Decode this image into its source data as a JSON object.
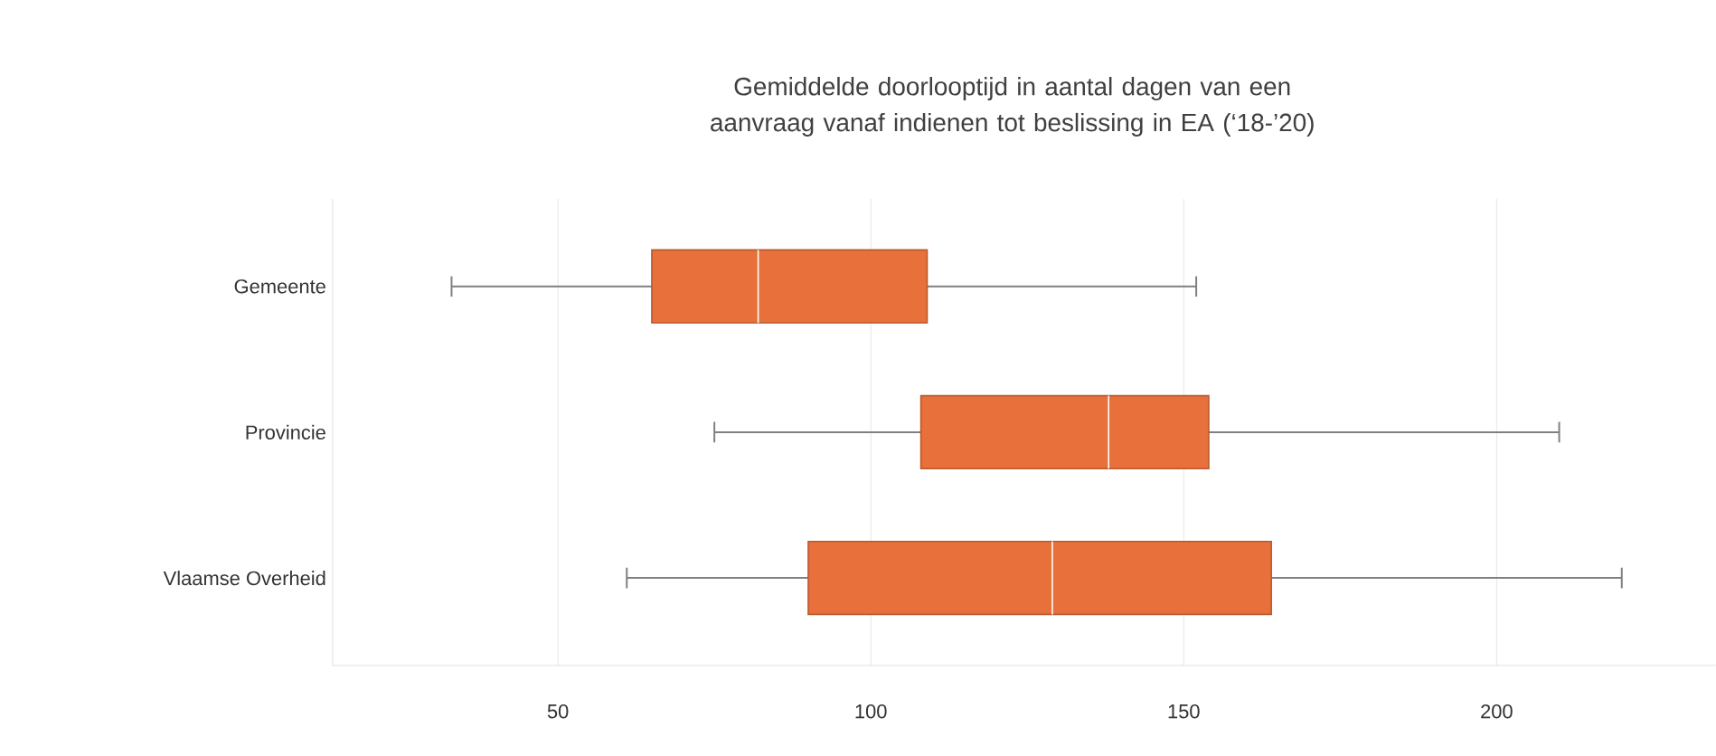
{
  "chart_data": {
    "type": "box",
    "title": "Gemiddelde doorlooptijd in aantal dagen van een aanvraag vanaf indienen tot beslissing in EA (‘18-’20)",
    "orientation": "horizontal",
    "categories": [
      "Gemeente",
      "Provincie",
      "Vlaamse Overheid"
    ],
    "color": "#e8703a",
    "boxes": [
      {
        "low": 33,
        "q1": 65,
        "median": 82,
        "q3": 109,
        "high": 152
      },
      {
        "low": 75,
        "q1": 108,
        "median": 138,
        "q3": 154,
        "high": 210
      },
      {
        "low": 61,
        "q1": 90,
        "median": 129,
        "q3": 164,
        "high": 220
      }
    ],
    "xlim": [
      14,
      235
    ],
    "xticks": [
      50,
      100,
      150,
      200
    ],
    "grid": "x"
  }
}
